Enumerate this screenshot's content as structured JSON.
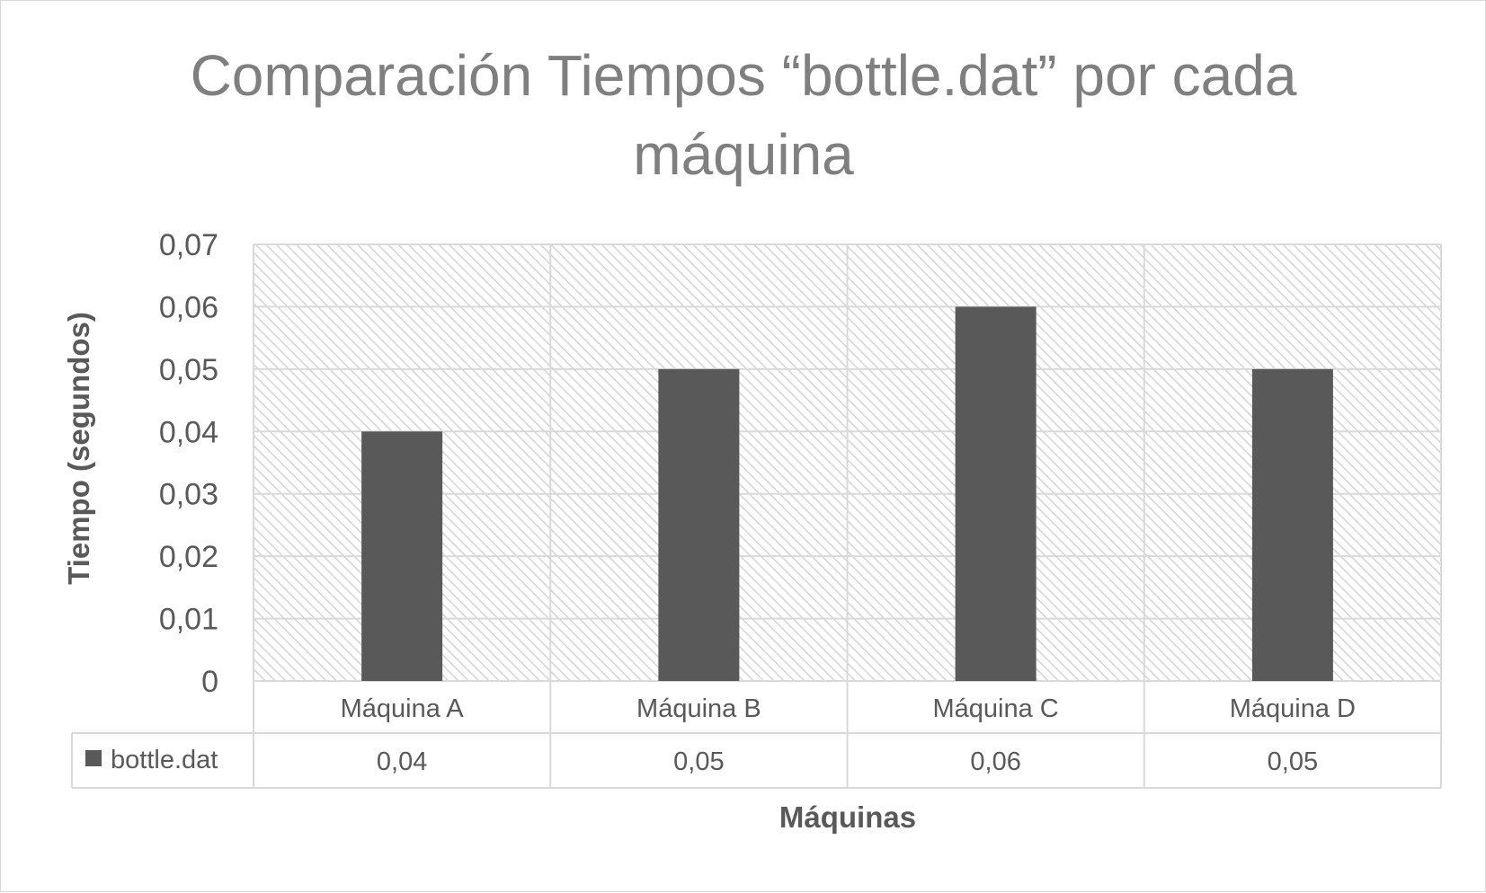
{
  "chart_data": {
    "type": "bar",
    "title_lines": [
      "Comparación Tiempos “bottle.dat” por cada",
      "máquina"
    ],
    "xlabel": "Máquinas",
    "ylabel": "Tiempo (segundos)",
    "categories": [
      "Máquina A",
      "Máquina B",
      "Máquina C",
      "Máquina D"
    ],
    "series": [
      {
        "name": "bottle.dat",
        "values": [
          0.04,
          0.05,
          0.06,
          0.05
        ],
        "labels": [
          "0,04",
          "0,05",
          "0,06",
          "0,05"
        ]
      }
    ],
    "ylim": [
      0,
      0.07
    ],
    "yticks": [
      0,
      0.01,
      0.02,
      0.03,
      0.04,
      0.05,
      0.06,
      0.07
    ],
    "ytick_labels": [
      "0",
      "0,01",
      "0,02",
      "0,03",
      "0,04",
      "0,05",
      "0,06",
      "0,07"
    ],
    "grid": true,
    "data_table": true,
    "colors": {
      "bar": "#595959",
      "grid": "#d9d9d9",
      "title": "#7f7f7f",
      "text": "#595959"
    }
  }
}
